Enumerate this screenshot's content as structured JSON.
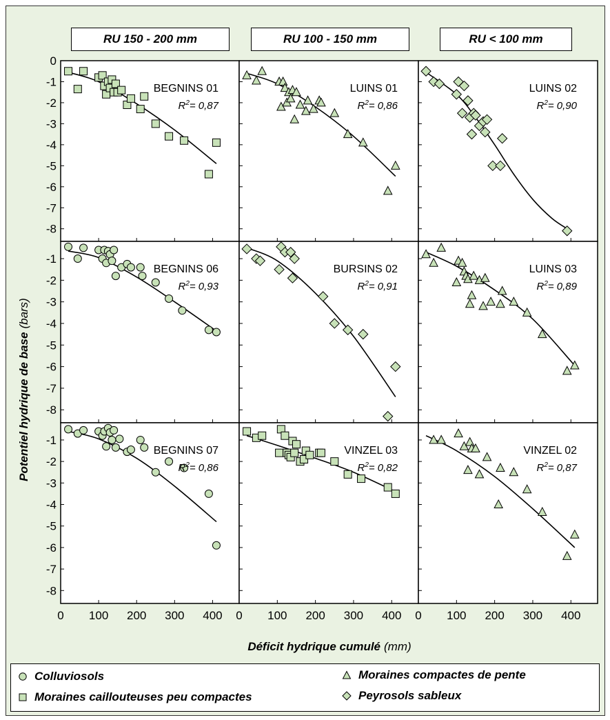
{
  "columns": [
    "RU 150 - 200 mm",
    "RU 100 - 150 mm",
    "RU < 100 mm"
  ],
  "axis": {
    "ylabel_main": "Potentiel hydrique de base",
    "ylabel_unit": "(bars)",
    "xlabel_main": "Déficit hydrique cumulé",
    "xlabel_unit": "(mm)",
    "x_ticks": [
      0,
      100,
      200,
      300,
      400
    ],
    "y_ticks": [
      0,
      -1,
      -2,
      -3,
      -4,
      -5,
      -6,
      -7,
      -8
    ]
  },
  "legend": {
    "colluviosols": "Colluviosols",
    "moraines_cailloux": "Moraines caillouteuses peu compactes",
    "moraines_compactes": "Moraines compactes de pente",
    "peyrosols": "Peyrosols sableux"
  },
  "colors": {
    "marker_fill": "#c8e2b8",
    "background": "#eaf2e2",
    "line": "#000000"
  },
  "chart_data": {
    "type": "scatter",
    "xlim": [
      0,
      470
    ],
    "ylims": [
      [
        -8.6,
        0
      ],
      [
        -8.6,
        -0.2
      ],
      [
        -8.6,
        -0.2
      ]
    ],
    "panels": [
      {
        "label": "BEGNINS 01",
        "r2": "0,87",
        "marker": "square",
        "points": [
          [
            20,
            -0.5
          ],
          [
            45,
            -1.35
          ],
          [
            60,
            -0.5
          ],
          [
            100,
            -0.8
          ],
          [
            110,
            -0.7
          ],
          [
            115,
            -1.2
          ],
          [
            120,
            -1.6
          ],
          [
            125,
            -1.0
          ],
          [
            130,
            -1.3
          ],
          [
            135,
            -0.9
          ],
          [
            140,
            -1.5
          ],
          [
            145,
            -1.1
          ],
          [
            150,
            -1.5
          ],
          [
            160,
            -1.4
          ],
          [
            175,
            -2.1
          ],
          [
            185,
            -1.8
          ],
          [
            210,
            -2.3
          ],
          [
            220,
            -1.7
          ],
          [
            250,
            -3.0
          ],
          [
            285,
            -3.6
          ],
          [
            325,
            -3.8
          ],
          [
            390,
            -5.4
          ],
          [
            410,
            -3.9
          ]
        ],
        "fit": [
          [
            20,
            -0.55
          ],
          [
            100,
            -1.0
          ],
          [
            200,
            -2.05
          ],
          [
            300,
            -3.3
          ],
          [
            410,
            -4.9
          ]
        ]
      },
      {
        "label": "LUINS 01",
        "r2": "0,86",
        "marker": "triangle",
        "points": [
          [
            20,
            -0.7
          ],
          [
            45,
            -0.95
          ],
          [
            60,
            -0.5
          ],
          [
            105,
            -1.0
          ],
          [
            110,
            -2.2
          ],
          [
            115,
            -1.0
          ],
          [
            120,
            -1.3
          ],
          [
            125,
            -2.0
          ],
          [
            130,
            -1.5
          ],
          [
            135,
            -1.8
          ],
          [
            140,
            -1.4
          ],
          [
            145,
            -2.8
          ],
          [
            150,
            -1.5
          ],
          [
            160,
            -2.1
          ],
          [
            175,
            -2.4
          ],
          [
            180,
            -1.9
          ],
          [
            195,
            -2.3
          ],
          [
            210,
            -1.9
          ],
          [
            215,
            -2.0
          ],
          [
            250,
            -2.5
          ],
          [
            285,
            -3.5
          ],
          [
            325,
            -3.9
          ],
          [
            390,
            -6.2
          ],
          [
            410,
            -5.0
          ]
        ],
        "fit": [
          [
            20,
            -0.6
          ],
          [
            100,
            -1.1
          ],
          [
            200,
            -2.2
          ],
          [
            300,
            -3.6
          ],
          [
            410,
            -5.5
          ]
        ]
      },
      {
        "label": "LUINS 02",
        "r2": "0,90",
        "marker": "diamond",
        "points": [
          [
            20,
            -0.5
          ],
          [
            40,
            -1.0
          ],
          [
            55,
            -1.1
          ],
          [
            100,
            -1.6
          ],
          [
            105,
            -1.0
          ],
          [
            115,
            -2.5
          ],
          [
            120,
            -1.2
          ],
          [
            130,
            -1.9
          ],
          [
            135,
            -2.7
          ],
          [
            140,
            -3.5
          ],
          [
            145,
            -2.5
          ],
          [
            150,
            -2.6
          ],
          [
            160,
            -3.1
          ],
          [
            170,
            -2.9
          ],
          [
            175,
            -3.4
          ],
          [
            180,
            -2.8
          ],
          [
            195,
            -5.0
          ],
          [
            215,
            -5.0
          ],
          [
            220,
            -3.7
          ],
          [
            390,
            -8.1
          ]
        ],
        "fit": [
          [
            20,
            -0.55
          ],
          [
            100,
            -1.6
          ],
          [
            150,
            -2.7
          ],
          [
            200,
            -4.0
          ],
          [
            250,
            -5.4
          ],
          [
            300,
            -6.6
          ],
          [
            350,
            -7.5
          ],
          [
            390,
            -8.0
          ]
        ]
      },
      {
        "label": "BEGNINS 06",
        "r2": "0,93",
        "marker": "circle",
        "points": [
          [
            20,
            -0.45
          ],
          [
            45,
            -1.0
          ],
          [
            60,
            -0.5
          ],
          [
            100,
            -0.6
          ],
          [
            110,
            -1.0
          ],
          [
            115,
            -0.6
          ],
          [
            120,
            -1.2
          ],
          [
            125,
            -0.65
          ],
          [
            130,
            -0.8
          ],
          [
            135,
            -1.1
          ],
          [
            140,
            -0.6
          ],
          [
            145,
            -1.8
          ],
          [
            160,
            -1.4
          ],
          [
            175,
            -1.25
          ],
          [
            185,
            -1.4
          ],
          [
            210,
            -1.4
          ],
          [
            215,
            -1.8
          ],
          [
            250,
            -2.1
          ],
          [
            285,
            -2.85
          ],
          [
            320,
            -3.4
          ],
          [
            390,
            -4.3
          ],
          [
            410,
            -4.4
          ]
        ],
        "fit": [
          [
            20,
            -0.65
          ],
          [
            100,
            -0.95
          ],
          [
            200,
            -1.85
          ],
          [
            300,
            -3.0
          ],
          [
            410,
            -4.35
          ]
        ]
      },
      {
        "label": "BURSINS 02",
        "r2": "0,91",
        "marker": "diamond",
        "points": [
          [
            20,
            -0.55
          ],
          [
            45,
            -1.0
          ],
          [
            55,
            -1.1
          ],
          [
            105,
            -1.5
          ],
          [
            110,
            -0.45
          ],
          [
            120,
            -0.7
          ],
          [
            135,
            -0.7
          ],
          [
            140,
            -1.9
          ],
          [
            145,
            -1.0
          ],
          [
            220,
            -2.75
          ],
          [
            250,
            -4.0
          ],
          [
            285,
            -4.3
          ],
          [
            325,
            -4.5
          ],
          [
            390,
            -8.3
          ],
          [
            410,
            -6.0
          ]
        ],
        "fit": [
          [
            20,
            -0.5
          ],
          [
            100,
            -1.1
          ],
          [
            200,
            -2.6
          ],
          [
            300,
            -4.6
          ],
          [
            410,
            -7.4
          ]
        ]
      },
      {
        "label": "LUINS 03",
        "r2": "0,89",
        "marker": "triangle",
        "points": [
          [
            20,
            -0.8
          ],
          [
            40,
            -1.2
          ],
          [
            60,
            -0.5
          ],
          [
            100,
            -2.1
          ],
          [
            105,
            -1.1
          ],
          [
            115,
            -1.2
          ],
          [
            120,
            -1.6
          ],
          [
            125,
            -1.8
          ],
          [
            130,
            -1.95
          ],
          [
            135,
            -3.1
          ],
          [
            140,
            -2.7
          ],
          [
            145,
            -1.8
          ],
          [
            160,
            -2.0
          ],
          [
            170,
            -3.2
          ],
          [
            175,
            -1.9
          ],
          [
            190,
            -3.0
          ],
          [
            215,
            -3.1
          ],
          [
            220,
            -2.5
          ],
          [
            250,
            -3.0
          ],
          [
            285,
            -3.5
          ],
          [
            325,
            -4.5
          ],
          [
            390,
            -6.2
          ],
          [
            410,
            -5.95
          ]
        ],
        "fit": [
          [
            20,
            -0.7
          ],
          [
            100,
            -1.35
          ],
          [
            200,
            -2.45
          ],
          [
            300,
            -3.8
          ],
          [
            410,
            -5.95
          ]
        ]
      },
      {
        "label": "BEGNINS 07",
        "r2": "0,86",
        "marker": "circle",
        "points": [
          [
            20,
            -0.5
          ],
          [
            45,
            -0.7
          ],
          [
            60,
            -0.55
          ],
          [
            100,
            -0.6
          ],
          [
            110,
            -0.8
          ],
          [
            115,
            -0.6
          ],
          [
            120,
            -1.3
          ],
          [
            125,
            -0.45
          ],
          [
            130,
            -0.65
          ],
          [
            135,
            -1.0
          ],
          [
            140,
            -0.55
          ],
          [
            145,
            -1.35
          ],
          [
            155,
            -0.95
          ],
          [
            175,
            -1.55
          ],
          [
            185,
            -1.45
          ],
          [
            210,
            -1.0
          ],
          [
            220,
            -1.35
          ],
          [
            250,
            -2.5
          ],
          [
            285,
            -2.0
          ],
          [
            325,
            -2.3
          ],
          [
            390,
            -3.5
          ],
          [
            410,
            -5.9
          ]
        ],
        "fit": [
          [
            20,
            -0.6
          ],
          [
            100,
            -0.95
          ],
          [
            200,
            -1.85
          ],
          [
            300,
            -3.15
          ],
          [
            410,
            -4.8
          ]
        ]
      },
      {
        "label": "VINZEL 03",
        "r2": "0,82",
        "marker": "square",
        "points": [
          [
            20,
            -0.6
          ],
          [
            45,
            -0.9
          ],
          [
            60,
            -0.8
          ],
          [
            105,
            -1.6
          ],
          [
            110,
            -0.5
          ],
          [
            120,
            -0.8
          ],
          [
            125,
            -1.6
          ],
          [
            130,
            -1.7
          ],
          [
            135,
            -1.8
          ],
          [
            140,
            -1.05
          ],
          [
            145,
            -1.6
          ],
          [
            150,
            -1.2
          ],
          [
            160,
            -2.0
          ],
          [
            170,
            -1.9
          ],
          [
            175,
            -1.5
          ],
          [
            185,
            -1.7
          ],
          [
            210,
            -1.6
          ],
          [
            215,
            -1.6
          ],
          [
            250,
            -2.0
          ],
          [
            285,
            -2.6
          ],
          [
            320,
            -2.8
          ],
          [
            390,
            -3.2
          ],
          [
            410,
            -3.5
          ]
        ],
        "fit": [
          [
            20,
            -0.8
          ],
          [
            100,
            -1.25
          ],
          [
            200,
            -1.85
          ],
          [
            300,
            -2.5
          ],
          [
            410,
            -3.4
          ]
        ]
      },
      {
        "label": "VINZEL 02",
        "r2": "0,87",
        "marker": "triangle",
        "points": [
          [
            40,
            -1.0
          ],
          [
            60,
            -1.0
          ],
          [
            105,
            -0.7
          ],
          [
            120,
            -1.3
          ],
          [
            130,
            -2.4
          ],
          [
            135,
            -1.1
          ],
          [
            140,
            -1.4
          ],
          [
            150,
            -1.4
          ],
          [
            160,
            -2.6
          ],
          [
            180,
            -1.8
          ],
          [
            210,
            -4.0
          ],
          [
            215,
            -2.3
          ],
          [
            250,
            -2.5
          ],
          [
            285,
            -3.3
          ],
          [
            325,
            -4.35
          ],
          [
            390,
            -6.4
          ],
          [
            410,
            -5.4
          ]
        ],
        "fit": [
          [
            20,
            -0.8
          ],
          [
            100,
            -1.5
          ],
          [
            200,
            -2.7
          ],
          [
            300,
            -4.2
          ],
          [
            410,
            -6.0
          ]
        ]
      }
    ]
  }
}
